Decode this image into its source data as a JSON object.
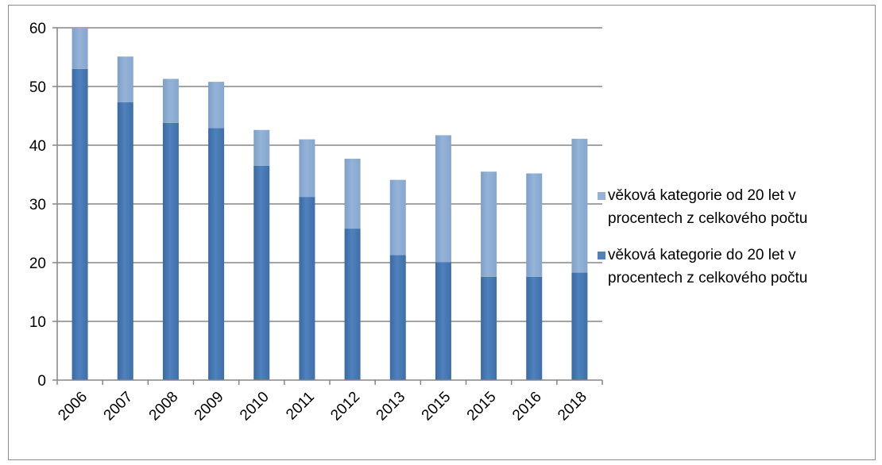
{
  "chart_data": {
    "type": "bar",
    "stacked": true,
    "categories": [
      "2006",
      "2007",
      "2008",
      "2009",
      "2010",
      "2011",
      "2012",
      "2013",
      "2015",
      "2015",
      "2016",
      "2018"
    ],
    "series": [
      {
        "name": "věková kategorie  do 20 let v procentech  z celkového počtu",
        "label_lines": [
          "věková kategorie  do 20 let v",
          "procentech  z celkového počtu"
        ],
        "color": "#4f81bd",
        "values": [
          53,
          47.3,
          43.8,
          42.9,
          36.5,
          31.2,
          25.8,
          21.3,
          20.1,
          17.6,
          17.6,
          18.3
        ]
      },
      {
        "name": "věková kategorie od 20 let v procentech z celkového počtu",
        "label_lines": [
          "věková kategorie od 20 let v",
          "procentech z celkového počtu"
        ],
        "color": "#95b3d7",
        "values": [
          7.2,
          7.8,
          7.5,
          7.9,
          6.1,
          9.8,
          11.9,
          12.8,
          21.6,
          17.9,
          17.6,
          22.8
        ]
      }
    ],
    "ylim": [
      0,
      60
    ],
    "yticks": [
      0,
      10,
      20,
      30,
      40,
      50,
      60
    ],
    "grid": true,
    "legend_position": "right"
  }
}
